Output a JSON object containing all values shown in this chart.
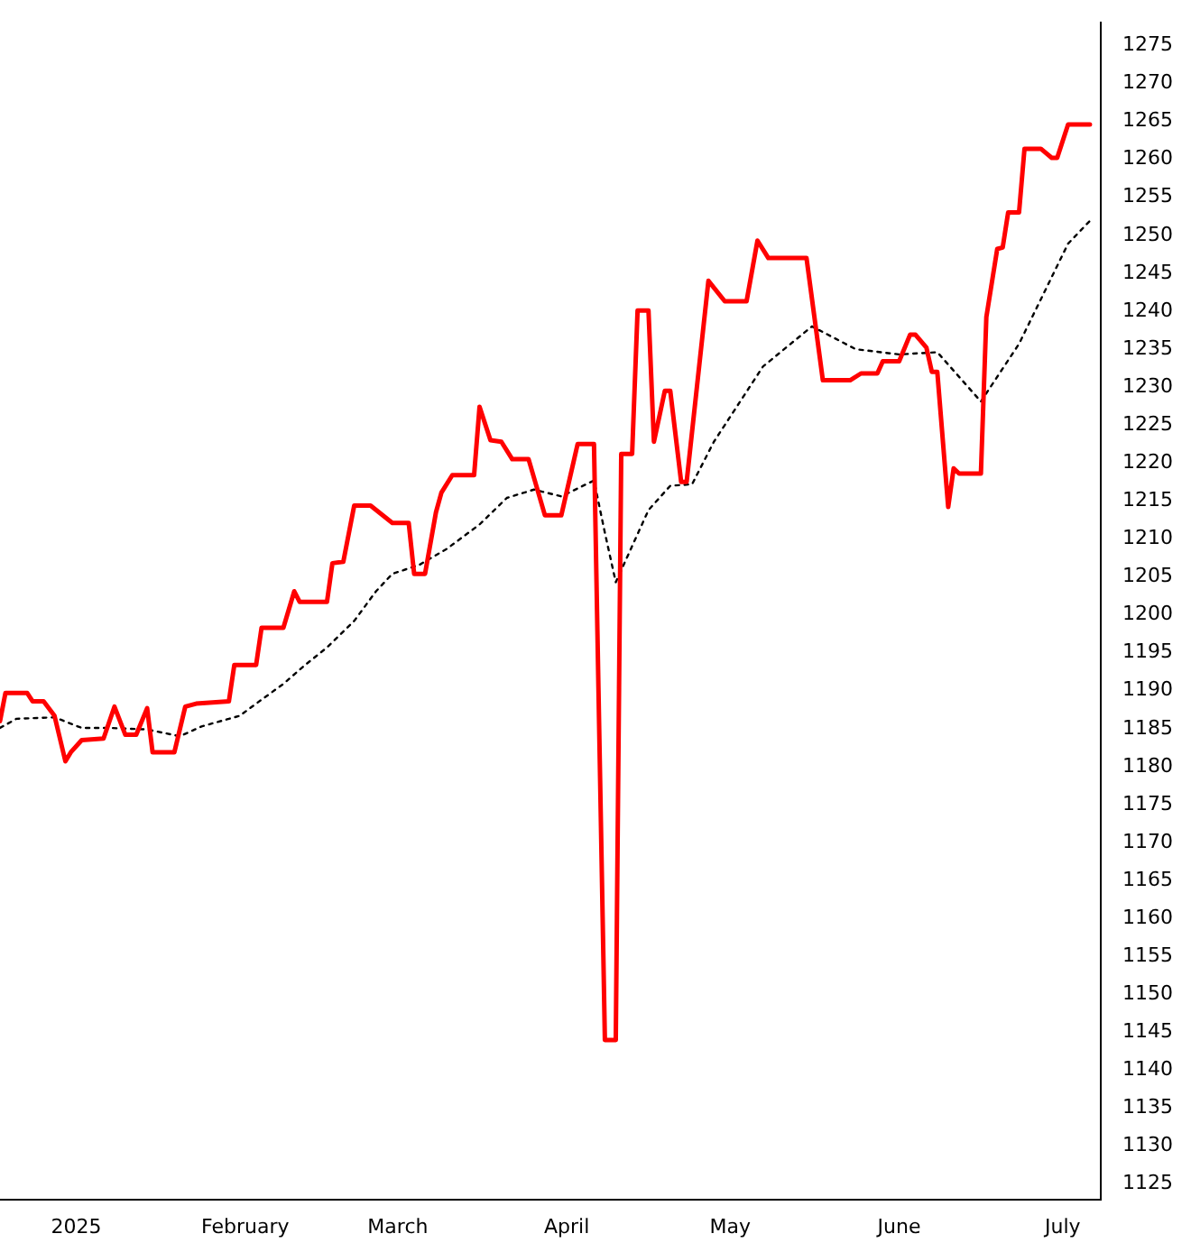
{
  "chart_data": {
    "type": "line",
    "xlim": [
      "2024-12-18",
      "2025-07-08"
    ],
    "ylim": [
      1123,
      1278
    ],
    "xticks": [
      {
        "value": "2025-01-01",
        "label": "2025"
      },
      {
        "value": "2025-02-01",
        "label": "February"
      },
      {
        "value": "2025-03-01",
        "label": "March"
      },
      {
        "value": "2025-04-01",
        "label": "April"
      },
      {
        "value": "2025-05-01",
        "label": "May"
      },
      {
        "value": "2025-06-01",
        "label": "June"
      },
      {
        "value": "2025-07-01",
        "label": "July"
      }
    ],
    "yticks": [
      1125,
      1130,
      1135,
      1140,
      1145,
      1150,
      1155,
      1160,
      1165,
      1170,
      1175,
      1180,
      1185,
      1190,
      1195,
      1200,
      1205,
      1210,
      1215,
      1220,
      1225,
      1230,
      1235,
      1240,
      1245,
      1250,
      1255,
      1260,
      1265,
      1270,
      1275
    ],
    "grid": false,
    "legend": false,
    "marker": "none",
    "series": [
      {
        "color": "#ff0000",
        "line_style": "solid",
        "x": [
          "2024-12-18",
          "2024-12-19",
          "2024-12-23",
          "2024-12-24",
          "2024-12-26",
          "2024-12-28",
          "2024-12-30",
          "2024-12-31",
          "2025-01-02",
          "2025-01-06",
          "2025-01-08",
          "2025-01-10",
          "2025-01-12",
          "2025-01-14",
          "2025-01-15",
          "2025-01-19",
          "2025-01-21",
          "2025-01-23",
          "2025-01-29",
          "2025-01-30",
          "2025-02-03",
          "2025-02-04",
          "2025-02-08",
          "2025-02-10",
          "2025-02-11",
          "2025-02-16",
          "2025-02-17",
          "2025-02-19",
          "2025-02-21",
          "2025-02-24",
          "2025-02-28",
          "2025-03-03",
          "2025-03-04",
          "2025-03-06",
          "2025-03-08",
          "2025-03-09",
          "2025-03-11",
          "2025-03-15",
          "2025-03-16",
          "2025-03-18",
          "2025-03-20",
          "2025-03-22",
          "2025-03-25",
          "2025-03-28",
          "2025-03-31",
          "2025-04-03",
          "2025-04-06",
          "2025-04-08",
          "2025-04-10",
          "2025-04-11",
          "2025-04-13",
          "2025-04-14",
          "2025-04-16",
          "2025-04-17",
          "2025-04-19",
          "2025-04-20",
          "2025-04-22",
          "2025-04-23",
          "2025-04-27",
          "2025-04-30",
          "2025-05-04",
          "2025-05-06",
          "2025-05-08",
          "2025-05-15",
          "2025-05-18",
          "2025-05-23",
          "2025-05-25",
          "2025-05-28",
          "2025-05-29",
          "2025-06-01",
          "2025-06-03",
          "2025-06-04",
          "2025-06-06",
          "2025-06-07",
          "2025-06-08",
          "2025-06-10",
          "2025-06-11",
          "2025-06-12",
          "2025-06-16",
          "2025-06-17",
          "2025-06-19",
          "2025-06-20",
          "2025-06-21",
          "2025-06-23",
          "2025-06-24",
          "2025-06-27",
          "2025-06-29",
          "2025-06-30",
          "2025-07-02",
          "2025-07-06"
        ],
        "values": [
          1186.0,
          1189.7,
          1189.7,
          1188.6,
          1188.6,
          1186.7,
          1180.7,
          1181.9,
          1183.5,
          1183.7,
          1187.9,
          1184.2,
          1184.2,
          1187.7,
          1181.9,
          1181.9,
          1187.9,
          1188.3,
          1188.6,
          1193.4,
          1193.4,
          1198.3,
          1198.3,
          1203.1,
          1201.7,
          1201.7,
          1206.8,
          1207.0,
          1214.4,
          1214.4,
          1212.1,
          1212.1,
          1205.4,
          1205.4,
          1213.5,
          1216.1,
          1218.4,
          1218.4,
          1227.4,
          1223.0,
          1222.8,
          1220.5,
          1220.5,
          1213.1,
          1213.1,
          1222.5,
          1222.5,
          1144.0,
          1144.0,
          1221.2,
          1221.2,
          1240.1,
          1240.1,
          1222.8,
          1229.5,
          1229.5,
          1217.5,
          1217.5,
          1244.0,
          1241.3,
          1241.3,
          1249.3,
          1247.0,
          1247.0,
          1230.9,
          1230.9,
          1231.8,
          1231.8,
          1233.4,
          1233.4,
          1236.9,
          1236.9,
          1235.2,
          1232.0,
          1232.0,
          1214.2,
          1219.3,
          1218.6,
          1218.6,
          1239.2,
          1248.2,
          1248.4,
          1253.0,
          1253.0,
          1261.4,
          1261.4,
          1260.2,
          1260.2,
          1264.6,
          1264.6
        ]
      },
      {
        "color": "#000000",
        "line_style": "dotted",
        "x": [
          "2024-12-18",
          "2024-12-21",
          "2024-12-28",
          "2025-01-02",
          "2025-01-07",
          "2025-01-14",
          "2025-01-20",
          "2025-01-24",
          "2025-01-31",
          "2025-02-03",
          "2025-02-08",
          "2025-02-12",
          "2025-02-16",
          "2025-02-21",
          "2025-02-25",
          "2025-02-28",
          "2025-03-05",
          "2025-03-10",
          "2025-03-16",
          "2025-03-21",
          "2025-03-26",
          "2025-03-31",
          "2025-04-06",
          "2025-04-08",
          "2025-04-10",
          "2025-04-16",
          "2025-04-20",
          "2025-04-24",
          "2025-04-28",
          "2025-05-07",
          "2025-05-16",
          "2025-05-24",
          "2025-06-01",
          "2025-06-08",
          "2025-06-16",
          "2025-06-23",
          "2025-07-02",
          "2025-07-06"
        ],
        "values": [
          1185.1,
          1186.3,
          1186.5,
          1185.1,
          1185.1,
          1184.9,
          1184.0,
          1185.3,
          1186.7,
          1188.3,
          1190.9,
          1193.4,
          1195.7,
          1199.2,
          1203.1,
          1205.4,
          1206.6,
          1208.7,
          1211.9,
          1215.4,
          1216.5,
          1215.6,
          1217.7,
          1210.8,
          1204.3,
          1213.8,
          1217.0,
          1217.2,
          1222.8,
          1232.7,
          1238.0,
          1235.0,
          1234.3,
          1234.6,
          1228.1,
          1235.7,
          1248.9,
          1251.9
        ]
      }
    ]
  }
}
